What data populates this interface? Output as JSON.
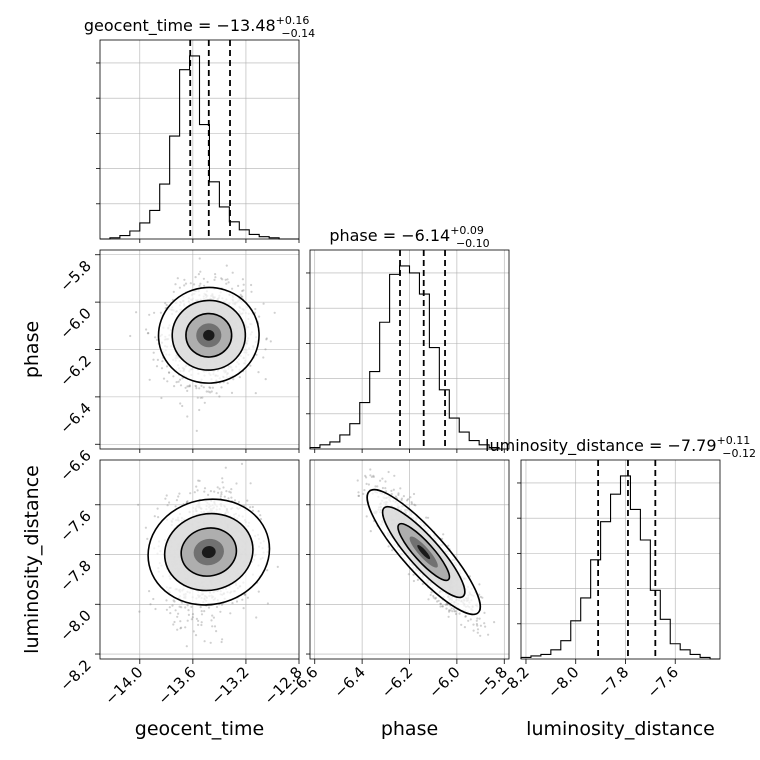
{
  "chart_data": {
    "type": "corner",
    "params": [
      "geocent_time",
      "phase",
      "luminosity_distance"
    ],
    "labels": {
      "geocent_time": "geocent_time",
      "phase": "phase",
      "luminosity_distance": "luminosity_distance"
    },
    "titles": [
      {
        "param": "geocent_time",
        "text": "geocent_time = −13.48",
        "sup": "+0.16",
        "sub": "−0.14"
      },
      {
        "param": "phase",
        "text": "phase = −6.14",
        "sup": "+0.09",
        "sub": "−0.10"
      },
      {
        "param": "luminosity_distance",
        "text": "luminosity_distance = −7.79",
        "sup": "+0.11",
        "sub": "−0.12"
      }
    ],
    "ranges": {
      "geocent_time": [
        -14.3,
        -12.8
      ],
      "phase": [
        -6.62,
        -5.78
      ],
      "luminosity_distance": [
        -8.22,
        -7.42
      ]
    },
    "ticks": {
      "geocent_time": {
        "values": [
          -14.0,
          -13.6,
          -13.2,
          -12.8
        ],
        "labels": [
          "−14.0",
          "−13.6",
          "−13.2",
          "−12.8"
        ]
      },
      "phase": {
        "values": [
          -6.6,
          -6.4,
          -6.2,
          -6.0,
          -5.8
        ],
        "labels": [
          "−6.6",
          "−6.4",
          "−6.2",
          "−6.0",
          "−5.8"
        ]
      },
      "luminosity_distance": {
        "values": [
          -8.2,
          -8.0,
          -7.8,
          -7.6
        ],
        "labels": [
          "−8.2",
          "−8.0",
          "−7.8",
          "−7.6"
        ]
      }
    },
    "quantiles": {
      "geocent_time": [
        -13.62,
        -13.48,
        -13.32
      ],
      "phase": [
        -6.24,
        -6.14,
        -6.05
      ],
      "luminosity_distance": [
        -7.91,
        -7.79,
        -7.68
      ]
    },
    "histograms": {
      "geocent_time": [
        0,
        1,
        3,
        7,
        14,
        25,
        48,
        90,
        148,
        160,
        100,
        50,
        28,
        15,
        8,
        4,
        2,
        1,
        0,
        0
      ],
      "phase": [
        1,
        3,
        5,
        10,
        18,
        33,
        55,
        90,
        124,
        130,
        125,
        110,
        72,
        42,
        22,
        12,
        6,
        3,
        1,
        0
      ],
      "luminosity_distance": [
        1,
        2,
        3,
        6,
        12,
        25,
        40,
        65,
        90,
        108,
        120,
        98,
        78,
        45,
        26,
        10,
        6,
        3,
        1,
        0
      ]
    },
    "grid": true,
    "color": "#000000"
  }
}
